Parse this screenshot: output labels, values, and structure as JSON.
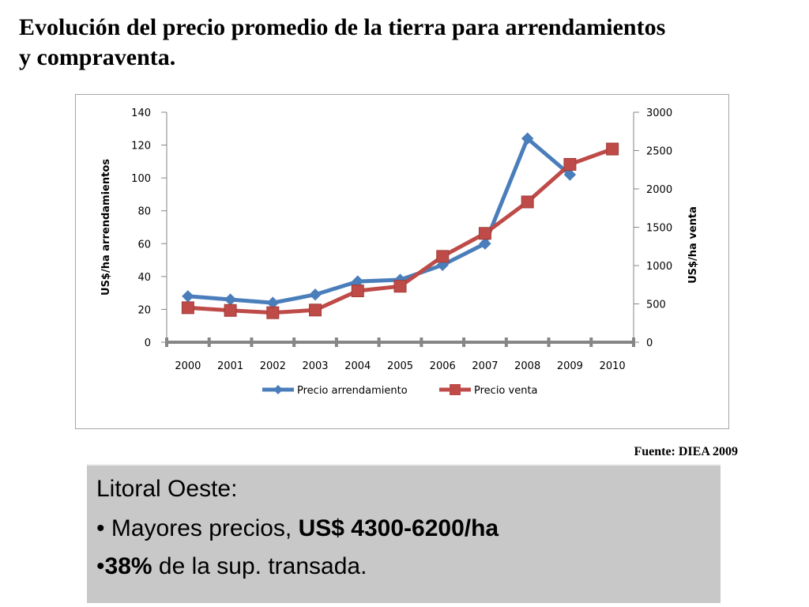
{
  "title": {
    "line1": "Evolución del precio promedio de la tierra para arrendamientos",
    "line2": "y compraventa."
  },
  "source": "Fuente: DIEA 2009",
  "info": {
    "heading": "Litoral Oeste:",
    "bullet1_prefix": "• Mayores precios, ",
    "bullet1_bold": "US$ 4300-6200",
    "bullet1_suffix": "/ha",
    "bullet2_prefix": "•",
    "bullet2_bold": "38%",
    "bullet2_suffix": " de la sup. transada."
  },
  "chart_data": {
    "type": "line",
    "title": "",
    "x": [
      "2000",
      "2001",
      "2002",
      "2003",
      "2004",
      "2005",
      "2006",
      "2007",
      "2008",
      "2009",
      "2010"
    ],
    "ylabel": "US$/ha arrendamientos",
    "y2label": "US$/ha venta",
    "ylim": [
      0,
      140
    ],
    "y2lim": [
      0,
      3000
    ],
    "yticks": [
      "0",
      "20",
      "40",
      "60",
      "80",
      "100",
      "120",
      "140"
    ],
    "y2ticks": [
      "0",
      "500",
      "1000",
      "1500",
      "2000",
      "2500",
      "3000"
    ],
    "legend_position": "bottom",
    "series": [
      {
        "name": "Precio arrendamiento",
        "axis": "left",
        "color": "#4a7ebb",
        "marker": "diamond",
        "values": [
          28,
          26,
          24,
          29,
          37,
          38,
          47,
          60,
          124,
          102,
          null
        ]
      },
      {
        "name": "Precio venta",
        "axis": "right",
        "color": "#be4b48",
        "marker": "square",
        "values": [
          450,
          415,
          385,
          420,
          670,
          730,
          1120,
          1420,
          1830,
          2320,
          2520
        ]
      }
    ]
  }
}
